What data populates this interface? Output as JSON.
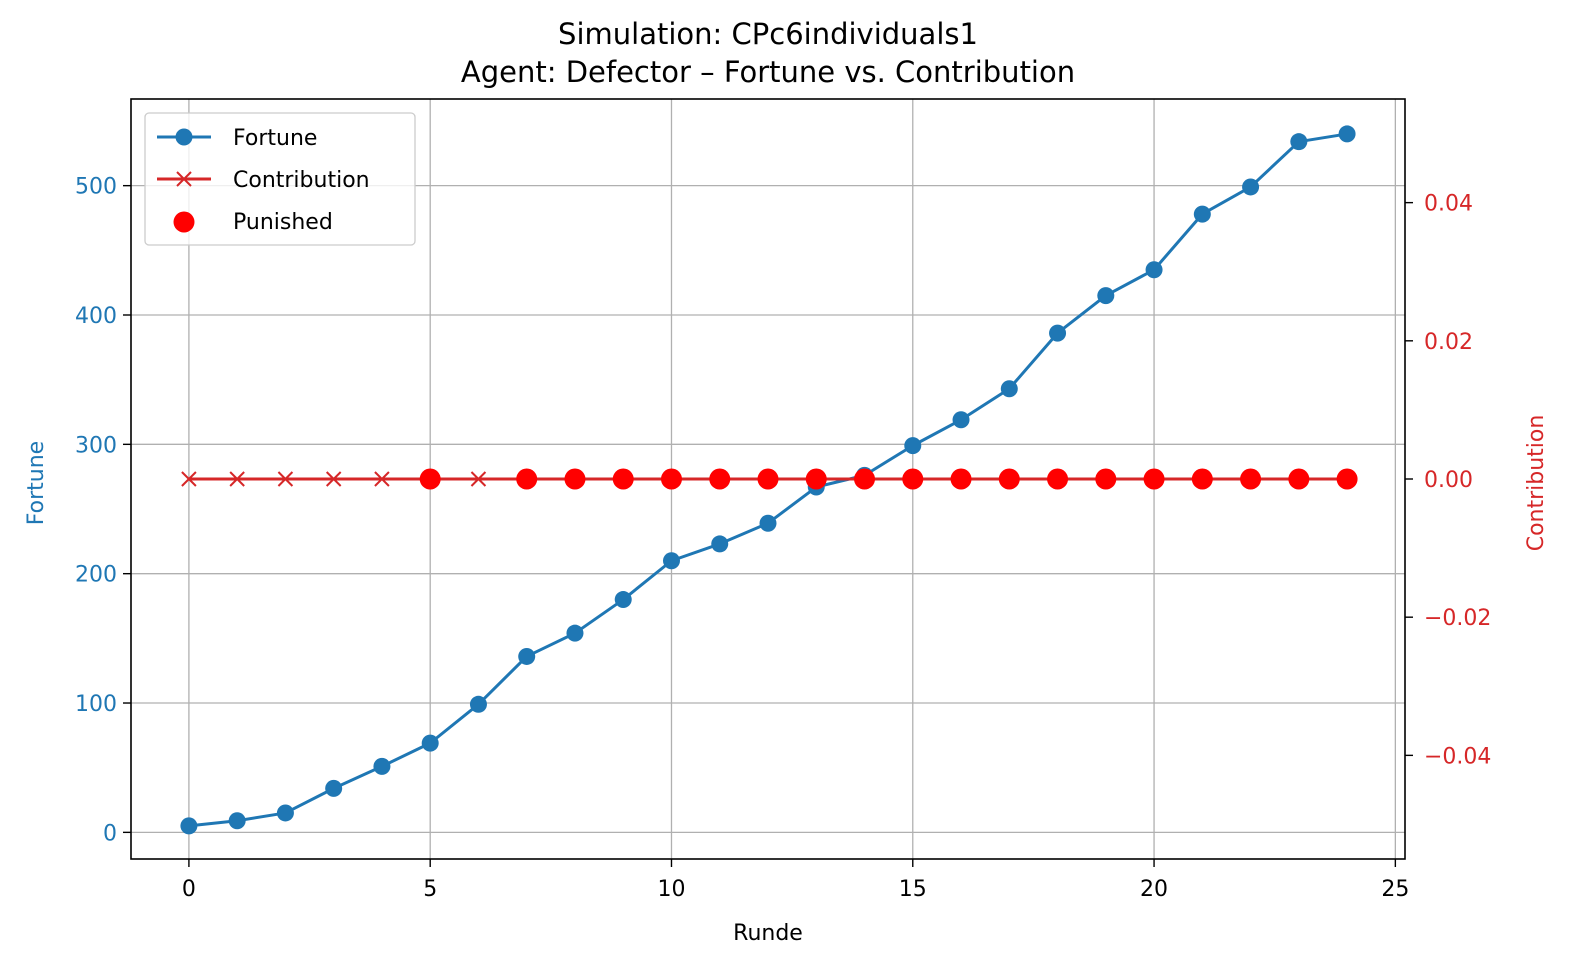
{
  "chart_data": {
    "type": "line",
    "title": "Simulation: CPc6individuals1",
    "subtitle": "Agent: Defector – Fortune vs. Contribution",
    "xlabel": "Runde",
    "ylabel_left": "Fortune",
    "ylabel_right": "Contribution",
    "xlim": [
      -1.2,
      25.2
    ],
    "ylim_left": [
      -20.6,
      567
    ],
    "ylim_right": [
      -0.055,
      0.055
    ],
    "x_ticks": [
      0,
      5,
      10,
      15,
      20,
      25
    ],
    "x_tick_labels": [
      "0",
      "5",
      "10",
      "15",
      "20",
      "25"
    ],
    "y_left_ticks": [
      0,
      100,
      200,
      300,
      400,
      500
    ],
    "y_left_tick_labels": [
      "0",
      "100",
      "200",
      "300",
      "400",
      "500"
    ],
    "y_right_ticks": [
      -0.04,
      -0.02,
      0.0,
      0.02,
      0.04
    ],
    "y_right_tick_labels": [
      "−0.04",
      "−0.02",
      "0.00",
      "0.02",
      "0.04"
    ],
    "grid": true,
    "legend_position": "upper-left",
    "colors": {
      "fortune": "#1f77b4",
      "contribution": "#d62728",
      "punished": "#ff0000",
      "grid": "#b0b0b0"
    },
    "x": [
      0,
      1,
      2,
      3,
      4,
      5,
      6,
      7,
      8,
      9,
      10,
      11,
      12,
      13,
      14,
      15,
      16,
      17,
      18,
      19,
      20,
      21,
      22,
      23,
      24
    ],
    "series": [
      {
        "name": "Fortune",
        "axis": "left",
        "marker": "circle",
        "values": [
          5,
          9,
          15,
          34,
          51,
          69,
          99,
          136,
          154,
          180,
          210,
          223,
          239,
          267,
          276,
          299,
          319,
          343,
          386,
          415,
          435,
          478,
          499,
          534,
          540
        ]
      },
      {
        "name": "Contribution",
        "axis": "right",
        "marker": "x",
        "values": [
          0,
          0,
          0,
          0,
          0,
          0,
          0,
          0,
          0,
          0,
          0,
          0,
          0,
          0,
          0,
          0,
          0,
          0,
          0,
          0,
          0,
          0,
          0,
          0,
          0
        ]
      },
      {
        "name": "Punished",
        "axis": "right",
        "marker": "dot",
        "x": [
          5,
          7,
          8,
          9,
          10,
          11,
          12,
          13,
          14,
          15,
          16,
          17,
          18,
          19,
          20,
          21,
          22,
          23,
          24
        ],
        "values": [
          0,
          0,
          0,
          0,
          0,
          0,
          0,
          0,
          0,
          0,
          0,
          0,
          0,
          0,
          0,
          0,
          0,
          0,
          0
        ]
      }
    ]
  }
}
